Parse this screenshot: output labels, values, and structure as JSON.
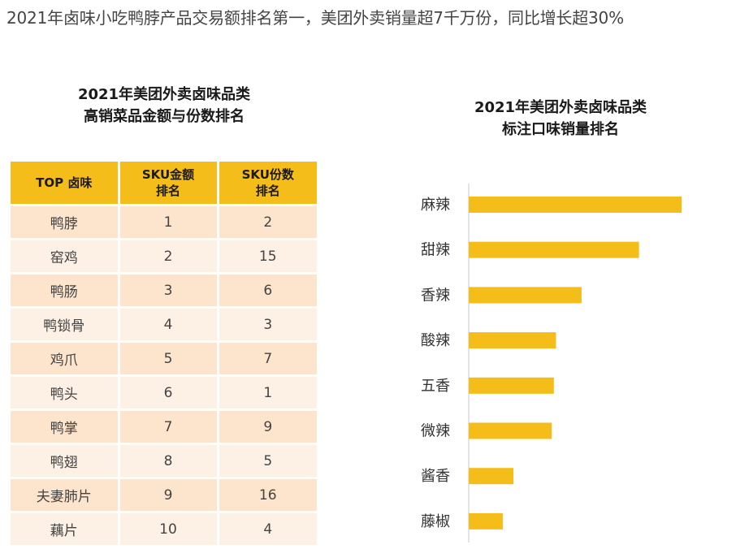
{
  "headline": "2021年卤味小吃鸭脖产品交易额排名第一，美团外卖销量超7千万份，同比增长超30%",
  "table": {
    "title_lines": [
      "2021年美团外卖卤味品类",
      "高销菜品金额与份数排名"
    ],
    "headers": {
      "dish": "TOP 卤味",
      "amount_line1": "SKU金额",
      "amount_line2": "排名",
      "count_line1": "SKU份数",
      "count_line2": "排名"
    },
    "rows": [
      {
        "dish": "鸭脖",
        "amount_rank": "1",
        "count_rank": "2"
      },
      {
        "dish": "窑鸡",
        "amount_rank": "2",
        "count_rank": "15"
      },
      {
        "dish": "鸭肠",
        "amount_rank": "3",
        "count_rank": "6"
      },
      {
        "dish": "鸭锁骨",
        "amount_rank": "4",
        "count_rank": "3"
      },
      {
        "dish": "鸡爪",
        "amount_rank": "5",
        "count_rank": "7"
      },
      {
        "dish": "鸭头",
        "amount_rank": "6",
        "count_rank": "1"
      },
      {
        "dish": "鸭掌",
        "amount_rank": "7",
        "count_rank": "9"
      },
      {
        "dish": "鸭翅",
        "amount_rank": "8",
        "count_rank": "5"
      },
      {
        "dish": "夫妻肺片",
        "amount_rank": "9",
        "count_rank": "16"
      },
      {
        "dish": "藕片",
        "amount_rank": "10",
        "count_rank": "4"
      }
    ]
  },
  "chart_data": {
    "type": "bar",
    "orientation": "horizontal",
    "title_lines": [
      "2021年美团外卖卤味品类",
      "标注口味销量排名"
    ],
    "categories": [
      "麻辣",
      "甜辣",
      "香辣",
      "酸辣",
      "五香",
      "微辣",
      "酱香",
      "藤椒"
    ],
    "values": [
      100,
      80,
      53,
      41,
      40,
      39,
      21,
      16
    ],
    "value_scale": "relative (no axis printed)",
    "xlim": [
      0,
      100
    ],
    "xlabel": "",
    "ylabel": "",
    "grid": false,
    "legend": "none",
    "bar_color": "#f5bd19"
  },
  "colors": {
    "accent": "#f5bd19",
    "row_odd": "#fde4cc",
    "row_even": "#fdf0e4"
  }
}
